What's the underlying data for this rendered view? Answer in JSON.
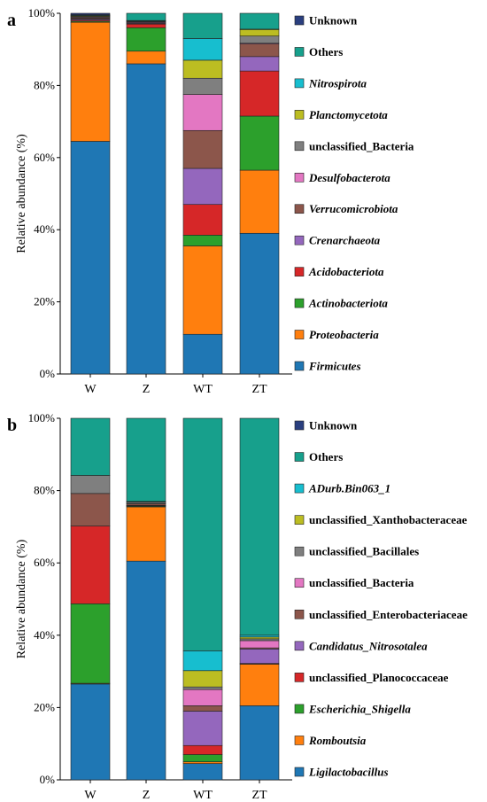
{
  "chart_data": [
    {
      "type": "bar",
      "stacked": true,
      "panel_label": "a",
      "ylabel": "Relative abundance (%)",
      "ylim": [
        0,
        100
      ],
      "yticks": [
        "0%",
        "20%",
        "40%",
        "60%",
        "80%",
        "100%"
      ],
      "categories": [
        "W",
        "Z",
        "WT",
        "ZT"
      ],
      "legend_position": "right",
      "series": [
        {
          "name": "Firmicutes",
          "italic": true,
          "color": "#1f77b4",
          "values": [
            64.5,
            86.0,
            11.0,
            39.0
          ]
        },
        {
          "name": "Proteobacteria",
          "italic": true,
          "color": "#ff7f0e",
          "values": [
            33.0,
            3.5,
            24.5,
            17.5
          ]
        },
        {
          "name": "Actinobacteriota",
          "italic": true,
          "color": "#2ca02c",
          "values": [
            0.3,
            6.5,
            3.0,
            15.0
          ]
        },
        {
          "name": "Acidobacteriota",
          "italic": true,
          "color": "#d62728",
          "values": [
            0.3,
            1.0,
            8.5,
            12.5
          ]
        },
        {
          "name": "Crenarchaeota",
          "italic": true,
          "color": "#9467bd",
          "values": [
            0.3,
            0.2,
            10.0,
            4.0
          ]
        },
        {
          "name": "Verrucomicrobiota",
          "italic": true,
          "color": "#8c564b",
          "values": [
            0.3,
            0.2,
            10.5,
            3.5
          ]
        },
        {
          "name": "Desulfobacterota",
          "italic": true,
          "color": "#e377c2",
          "values": [
            0.2,
            0.2,
            10.0,
            0.2
          ]
        },
        {
          "name": "unclassified_Bacteria",
          "italic": false,
          "color": "#7f7f7f",
          "values": [
            0.2,
            0.2,
            4.5,
            2.0
          ]
        },
        {
          "name": "Planctomycetota",
          "italic": true,
          "color": "#bcbd22",
          "values": [
            0.2,
            0.1,
            5.0,
            1.8
          ]
        },
        {
          "name": "Nitrospirota",
          "italic": true,
          "color": "#17becf",
          "values": [
            0.1,
            0.1,
            6.0,
            0.1
          ]
        },
        {
          "name": "Others",
          "italic": false,
          "color": "#17a08c",
          "values": [
            0.2,
            2.0,
            7.0,
            4.4
          ]
        },
        {
          "name": "Unknown",
          "italic": false,
          "color": "#2a3f7f",
          "values": [
            0.4,
            0.0,
            0.0,
            0.0
          ]
        }
      ]
    },
    {
      "type": "bar",
      "stacked": true,
      "panel_label": "b",
      "ylabel": "Relative abundance (%)",
      "ylim": [
        0,
        100
      ],
      "yticks": [
        "0%",
        "20%",
        "40%",
        "60%",
        "80%",
        "100%"
      ],
      "categories": [
        "W",
        "Z",
        "WT",
        "ZT"
      ],
      "legend_position": "right",
      "series": [
        {
          "name": "Ligilactobacillus",
          "italic": true,
          "color": "#1f77b4",
          "values": [
            26.5,
            60.5,
            4.5,
            20.5
          ]
        },
        {
          "name": "Romboutsia",
          "italic": true,
          "color": "#ff7f0e",
          "values": [
            0.2,
            15.0,
            0.5,
            11.5
          ]
        },
        {
          "name": "Escherichia_Shigella",
          "italic": true,
          "color": "#2ca02c",
          "values": [
            22.0,
            0.2,
            2.0,
            0.1
          ]
        },
        {
          "name": "unclassified_Planococcaceae",
          "italic": false,
          "color": "#d62728",
          "values": [
            21.5,
            0.1,
            2.5,
            0.1
          ]
        },
        {
          "name": "Candidatus_Nitrosotalea",
          "italic": true,
          "color": "#9467bd",
          "values": [
            0.0,
            0.1,
            9.5,
            4.0
          ]
        },
        {
          "name": "unclassified_Enterobacteriaceae",
          "italic": false,
          "color": "#8c564b",
          "values": [
            9.0,
            0.4,
            1.5,
            0.3
          ]
        },
        {
          "name": "unclassified_Bacteria",
          "italic": false,
          "color": "#e377c2",
          "values": [
            0.0,
            0.1,
            4.5,
            2.0
          ]
        },
        {
          "name": "unclassified_Bacillales",
          "italic": false,
          "color": "#7f7f7f",
          "values": [
            5.0,
            0.4,
            0.7,
            0.5
          ]
        },
        {
          "name": "unclassified_Xanthobacteraceae",
          "italic": false,
          "color": "#bcbd22",
          "values": [
            0.0,
            0.1,
            4.5,
            0.5
          ]
        },
        {
          "name": "ADurb.Bin063_1",
          "italic": true,
          "color": "#17becf",
          "values": [
            0.0,
            0.1,
            5.5,
            0.5
          ]
        },
        {
          "name": "Others",
          "italic": false,
          "color": "#17a08c",
          "values": [
            15.8,
            23.0,
            64.3,
            60.0
          ]
        },
        {
          "name": "Unknown",
          "italic": false,
          "color": "#2a3f7f",
          "values": [
            0.0,
            0.0,
            0.0,
            0.0
          ]
        }
      ]
    }
  ]
}
